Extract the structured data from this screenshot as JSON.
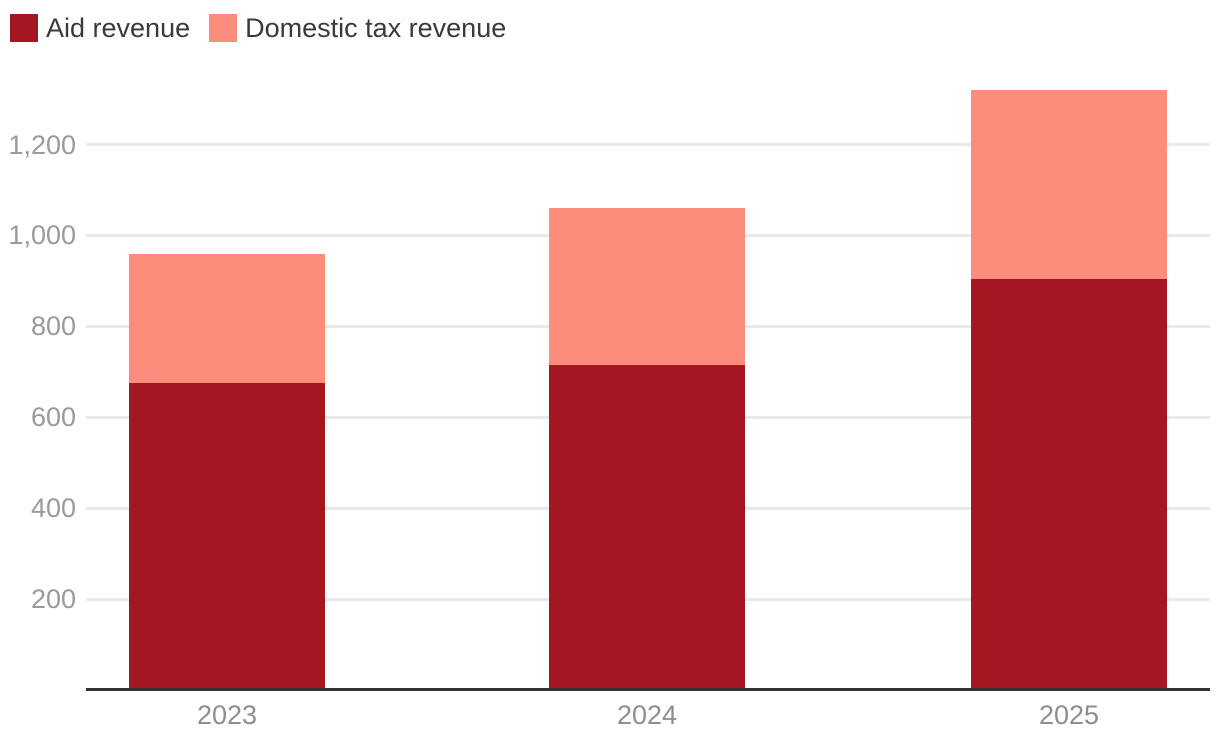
{
  "chart_data": {
    "type": "bar",
    "stacked": true,
    "title": "",
    "xlabel": "",
    "ylabel": "",
    "categories": [
      "2023",
      "2024",
      "2025"
    ],
    "series": [
      {
        "name": "Aid revenue",
        "color": "#A41622",
        "values": [
          675,
          715,
          905
        ]
      },
      {
        "name": "Domestic tax revenue",
        "color": "#FC8C7C",
        "values": [
          285,
          345,
          415
        ]
      }
    ],
    "totals": [
      960,
      1060,
      1320
    ],
    "ylim": [
      0,
      1400
    ],
    "yticks": [
      {
        "value": 200,
        "label": "200"
      },
      {
        "value": 400,
        "label": "400"
      },
      {
        "value": 600,
        "label": "600"
      },
      {
        "value": 800,
        "label": "800"
      },
      {
        "value": 1000,
        "label": "1,000"
      },
      {
        "value": 1200,
        "label": "1,200"
      }
    ],
    "grid": "horizontal",
    "legend_position": "top-left",
    "colors": {
      "background": "#FFFFFF",
      "grid": "#E9E9E9",
      "axis": "#333333",
      "y_tick_label": "#9A9A9A",
      "x_tick_label": "#8E8E8E",
      "legend_text": "#3A3A3A"
    }
  }
}
